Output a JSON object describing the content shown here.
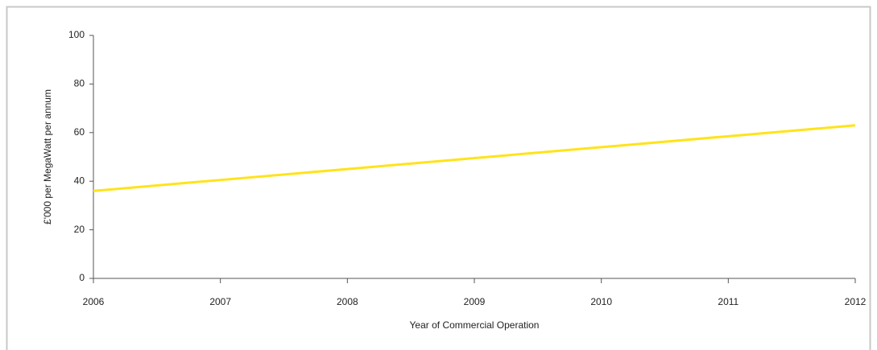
{
  "chart_data": {
    "type": "line",
    "x_label": "Year of Commercial Operation",
    "y_label": "£'000 per MegaWatt per annum",
    "x": [
      2006,
      2007,
      2008,
      2009,
      2010,
      2011,
      2012
    ],
    "values": [
      36,
      40.5,
      45,
      49.5,
      54,
      58.5,
      63
    ],
    "color": "#ffe31a",
    "xlim": [
      2006,
      2012
    ],
    "xticks": [
      2006,
      2007,
      2008,
      2009,
      2010,
      2011,
      2012
    ],
    "ylim": [
      0,
      100
    ],
    "yticks": [
      0,
      20,
      40,
      60,
      80,
      100
    ],
    "grid": false
  }
}
